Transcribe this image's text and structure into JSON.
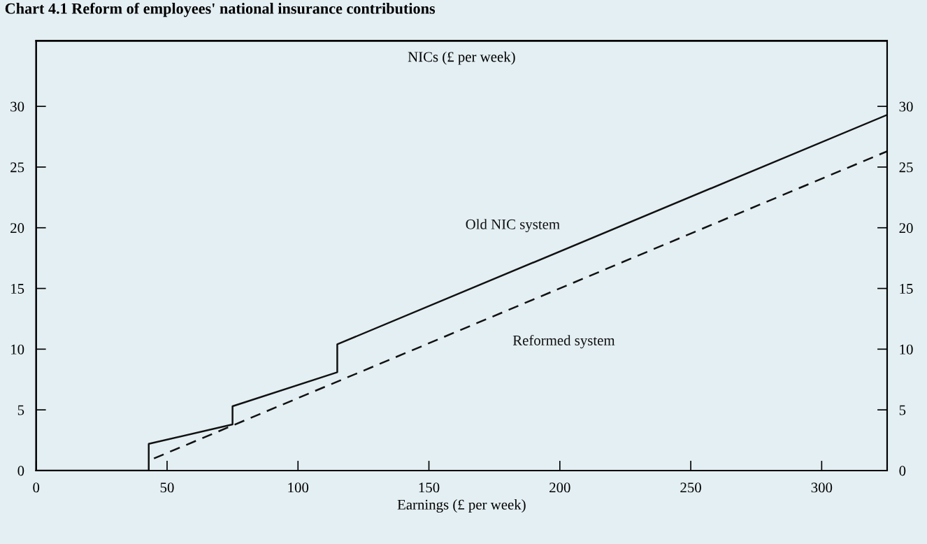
{
  "chart_data": {
    "type": "line",
    "title": "Chart 4.1 Reform of employees' national insurance contributions",
    "ylabel": "NICs (£ per week)",
    "xlabel": "Earnings (£ per week)",
    "series": [
      {
        "name": "Old NIC system",
        "color": "#111111",
        "line_style": "solid",
        "x": [
          0,
          43,
          43,
          75,
          75,
          115,
          115,
          325
        ],
        "values": [
          0,
          0,
          2.2,
          3.8,
          5.3,
          8.1,
          10.4,
          29.3
        ]
      },
      {
        "name": "Reformed system",
        "color": "#111111",
        "line_style": "dashed",
        "x": [
          45,
          325
        ],
        "values": [
          1.0,
          26.3
        ]
      }
    ],
    "xlim": [
      0,
      325
    ],
    "xticks": [
      0,
      50,
      100,
      150,
      200,
      250,
      300
    ],
    "ylim": [
      0,
      35.4
    ],
    "yticks": [
      0,
      5,
      10,
      15,
      20,
      25,
      30
    ],
    "y2lim": [
      0,
      35.4
    ],
    "y2ticks": [
      0,
      5,
      10,
      15,
      20,
      25,
      30
    ],
    "grid": false,
    "legend": false,
    "marker": "none"
  }
}
